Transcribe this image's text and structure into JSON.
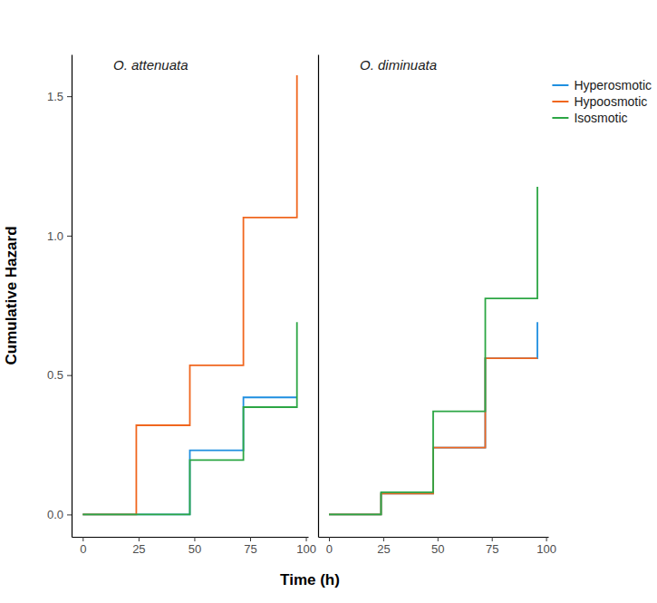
{
  "chart_data": {
    "type": "line",
    "x_label": "Time (h)",
    "y_label": "Cumulative Hazard",
    "legend": "top-right",
    "line_style": "step",
    "x": [
      0,
      24,
      48,
      72,
      96
    ],
    "xlim": [
      -5,
      101
    ],
    "xticks": [
      0,
      25,
      50,
      75,
      100
    ],
    "ylim": [
      -0.08,
      1.65
    ],
    "yticks": [
      {
        "value": 0,
        "label": "0.0"
      },
      0.5,
      {
        "value": 1,
        "label": "1.0"
      },
      1.5
    ],
    "panels": [
      {
        "title": "O. attenuata",
        "series": [
          {
            "name": "Hyperosmotic",
            "color": "#1f8fe0",
            "values": [
              0,
              0,
              0.23,
              0.42,
              0.42
            ]
          },
          {
            "name": "Hypoosmotic",
            "color": "#f0661e",
            "values": [
              0,
              0.32,
              0.535,
              1.065,
              1.575
            ]
          },
          {
            "name": "Isosmotic",
            "color": "#2ca644",
            "values": [
              0,
              0,
              0.195,
              0.385,
              0.69
            ]
          }
        ]
      },
      {
        "title": "O. diminuata",
        "series": [
          {
            "name": "Hyperosmotic",
            "color": "#1f8fe0",
            "values": [
              0,
              0.075,
              0.24,
              0.56,
              0.69
            ]
          },
          {
            "name": "Hypoosmotic",
            "color": "#f0661e",
            "values": [
              0,
              0.075,
              0.24,
              0.56,
              0.56
            ]
          },
          {
            "name": "Isosmotic",
            "color": "#2ca644",
            "values": [
              0,
              0.08,
              0.37,
              0.775,
              1.175
            ]
          }
        ]
      }
    ]
  }
}
